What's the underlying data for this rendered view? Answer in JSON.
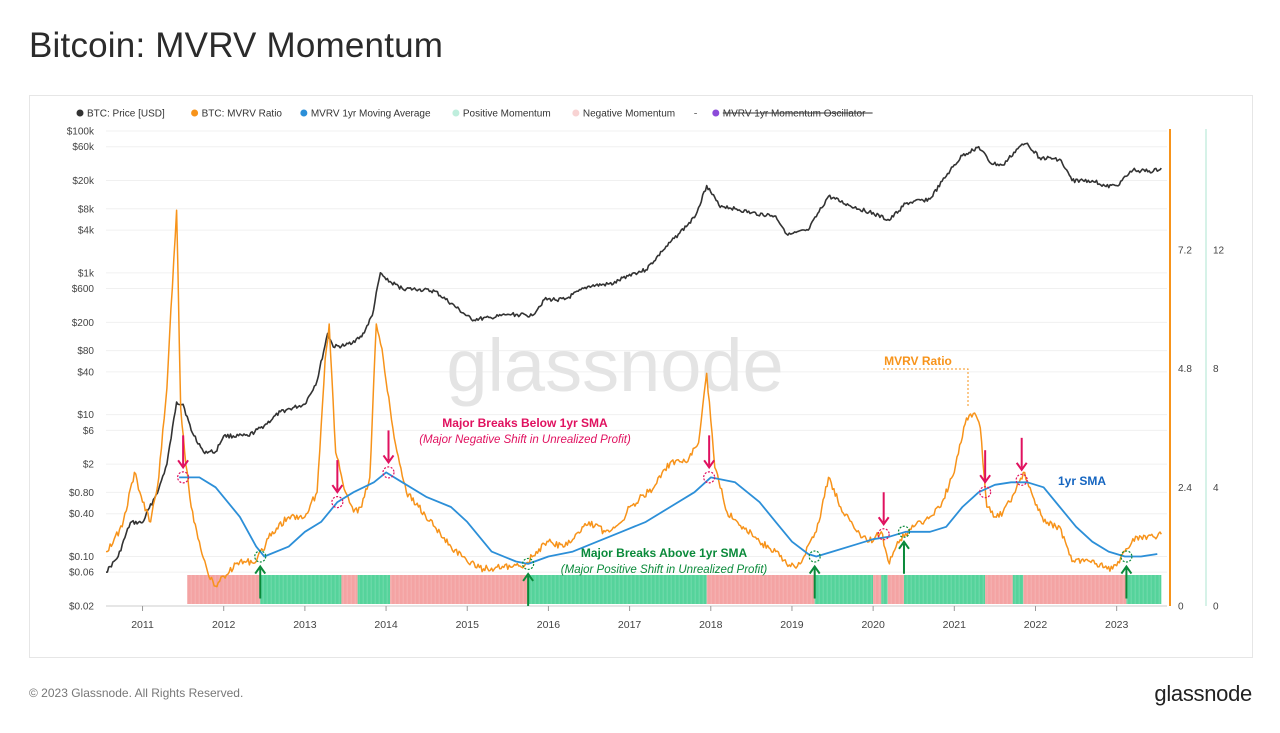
{
  "page": {
    "title": "Bitcoin: MVRV Momentum",
    "copyright": "© 2023 Glassnode. All Rights Reserved.",
    "brand": "glassnode",
    "watermark": "glassnode"
  },
  "colors": {
    "price": "#333333",
    "mvrv": "#f7931a",
    "sma": "#2c8fd8",
    "positive": "#55d39b",
    "negative": "#f4a3a3",
    "oscillator": "#8c4bd9",
    "neg_text": "#e0115f",
    "pos_text": "#0a8a3a",
    "sma_text": "#1565c0"
  },
  "annotations": {
    "neg_title": "Major Breaks Below 1yr SMA",
    "neg_sub": "(Major Negative Shift in Unrealized Profit)",
    "pos_title": "Major Breaks Above 1yr SMA",
    "pos_sub": "(Major Positive Shift in Unrealized Profit)",
    "mvrv_label": "MVRV Ratio",
    "sma_label": "1yr SMA"
  },
  "chart_data": {
    "type": "line",
    "title": "Bitcoin: MVRV Momentum",
    "legend": [
      {
        "name": "BTC: Price [USD]",
        "color": "#333333",
        "strike": false
      },
      {
        "name": "BTC: MVRV Ratio",
        "color": "#f7931a",
        "strike": false
      },
      {
        "name": "MVRV 1yr Moving Average",
        "color": "#2c8fd8",
        "strike": false
      },
      {
        "name": "Positive Momentum",
        "color": "#bfeedd",
        "strike": false
      },
      {
        "name": "Negative Momentum",
        "color": "#f8d3d3",
        "strike": false
      },
      {
        "name": "MVRV 1yr Momentum Oscillator",
        "color": "#8c4bd9",
        "strike": true
      }
    ],
    "x_ticks": [
      "2011",
      "2012",
      "2013",
      "2014",
      "2015",
      "2016",
      "2017",
      "2018",
      "2019",
      "2020",
      "2021",
      "2022",
      "2023"
    ],
    "y_left": {
      "scale": "log",
      "ticks": [
        "$100k",
        "$60k",
        "$20k",
        "$8k",
        "$4k",
        "$1k",
        "$600",
        "$200",
        "$80",
        "$40",
        "$10",
        "$6",
        "$2",
        "$0.80",
        "$0.40",
        "$0.10",
        "$0.06",
        "$0.02"
      ]
    },
    "y_mvrv": {
      "ticks": [
        "7.2",
        "4.8",
        "2.4",
        "0"
      ],
      "range": [
        0,
        9.6
      ]
    },
    "y_osc": {
      "ticks": [
        "12",
        "8",
        "4",
        "0"
      ],
      "range": [
        0,
        16
      ]
    },
    "price": [
      [
        2010.55,
        0.06
      ],
      [
        2010.7,
        0.1
      ],
      [
        2010.85,
        0.3
      ],
      [
        2011.0,
        0.3
      ],
      [
        2011.2,
        0.9
      ],
      [
        2011.3,
        2
      ],
      [
        2011.42,
        15
      ],
      [
        2011.5,
        14
      ],
      [
        2011.6,
        6
      ],
      [
        2011.75,
        3
      ],
      [
        2011.9,
        3
      ],
      [
        2012.0,
        5
      ],
      [
        2012.3,
        5
      ],
      [
        2012.5,
        7
      ],
      [
        2012.7,
        11
      ],
      [
        2013.0,
        14
      ],
      [
        2013.15,
        30
      ],
      [
        2013.28,
        140
      ],
      [
        2013.35,
        90
      ],
      [
        2013.5,
        95
      ],
      [
        2013.7,
        125
      ],
      [
        2013.83,
        250
      ],
      [
        2013.93,
        1000
      ],
      [
        2014.0,
        800
      ],
      [
        2014.2,
        600
      ],
      [
        2014.4,
        580
      ],
      [
        2014.6,
        550
      ],
      [
        2014.8,
        370
      ],
      [
        2015.05,
        220
      ],
      [
        2015.3,
        230
      ],
      [
        2015.5,
        260
      ],
      [
        2015.8,
        250
      ],
      [
        2015.95,
        420
      ],
      [
        2016.2,
        420
      ],
      [
        2016.5,
        650
      ],
      [
        2016.8,
        700
      ],
      [
        2017.0,
        950
      ],
      [
        2017.2,
        1100
      ],
      [
        2017.4,
        2000
      ],
      [
        2017.6,
        3500
      ],
      [
        2017.8,
        6000
      ],
      [
        2017.95,
        17000
      ],
      [
        2018.1,
        9000
      ],
      [
        2018.3,
        8000
      ],
      [
        2018.5,
        7000
      ],
      [
        2018.8,
        6300
      ],
      [
        2018.95,
        3400
      ],
      [
        2019.2,
        4000
      ],
      [
        2019.45,
        12000
      ],
      [
        2019.7,
        9000
      ],
      [
        2019.95,
        7200
      ],
      [
        2020.2,
        5500
      ],
      [
        2020.4,
        9500
      ],
      [
        2020.7,
        11000
      ],
      [
        2020.95,
        28000
      ],
      [
        2021.1,
        45000
      ],
      [
        2021.3,
        60000
      ],
      [
        2021.45,
        35000
      ],
      [
        2021.6,
        33000
      ],
      [
        2021.8,
        60000
      ],
      [
        2021.9,
        67000
      ],
      [
        2022.05,
        42000
      ],
      [
        2022.3,
        40000
      ],
      [
        2022.45,
        20000
      ],
      [
        2022.7,
        20000
      ],
      [
        2022.87,
        16500
      ],
      [
        2023.0,
        17000
      ],
      [
        2023.2,
        28000
      ],
      [
        2023.45,
        27000
      ],
      [
        2023.55,
        30000
      ]
    ],
    "mvrv": [
      [
        2010.55,
        1.1
      ],
      [
        2010.75,
        1.6
      ],
      [
        2010.9,
        2.7
      ],
      [
        2011.0,
        2.1
      ],
      [
        2011.1,
        1.7
      ],
      [
        2011.2,
        2.6
      ],
      [
        2011.3,
        4.4
      ],
      [
        2011.35,
        6.0
      ],
      [
        2011.42,
        8.0
      ],
      [
        2011.47,
        4.0
      ],
      [
        2011.52,
        3.1
      ],
      [
        2011.6,
        2.0
      ],
      [
        2011.7,
        1.3
      ],
      [
        2011.8,
        0.7
      ],
      [
        2011.9,
        0.4
      ],
      [
        2012.0,
        0.6
      ],
      [
        2012.2,
        0.9
      ],
      [
        2012.4,
        0.9
      ],
      [
        2012.6,
        1.5
      ],
      [
        2012.8,
        1.8
      ],
      [
        2013.0,
        1.8
      ],
      [
        2013.15,
        2.3
      ],
      [
        2013.25,
        5.0
      ],
      [
        2013.3,
        5.7
      ],
      [
        2013.38,
        3.1
      ],
      [
        2013.5,
        2.3
      ],
      [
        2013.6,
        1.9
      ],
      [
        2013.7,
        2.0
      ],
      [
        2013.8,
        2.6
      ],
      [
        2013.88,
        5.7
      ],
      [
        2013.95,
        5.2
      ],
      [
        2014.1,
        3.4
      ],
      [
        2014.25,
        2.3
      ],
      [
        2014.4,
        2.0
      ],
      [
        2014.6,
        1.6
      ],
      [
        2014.8,
        1.2
      ],
      [
        2015.0,
        0.9
      ],
      [
        2015.2,
        0.75
      ],
      [
        2015.45,
        0.78
      ],
      [
        2015.7,
        0.8
      ],
      [
        2015.85,
        1.1
      ],
      [
        2016.0,
        1.3
      ],
      [
        2016.2,
        1.2
      ],
      [
        2016.5,
        1.7
      ],
      [
        2016.7,
        1.5
      ],
      [
        2016.9,
        1.7
      ],
      [
        2017.0,
        2.0
      ],
      [
        2017.3,
        2.4
      ],
      [
        2017.5,
        2.9
      ],
      [
        2017.7,
        2.9
      ],
      [
        2017.85,
        3.3
      ],
      [
        2017.95,
        4.7
      ],
      [
        2018.05,
        2.8
      ],
      [
        2018.2,
        1.9
      ],
      [
        2018.4,
        1.6
      ],
      [
        2018.6,
        1.3
      ],
      [
        2018.8,
        1.1
      ],
      [
        2018.95,
        0.8
      ],
      [
        2019.1,
        0.85
      ],
      [
        2019.3,
        1.5
      ],
      [
        2019.45,
        2.6
      ],
      [
        2019.6,
        2.0
      ],
      [
        2019.8,
        1.5
      ],
      [
        2019.95,
        1.3
      ],
      [
        2020.1,
        1.5
      ],
      [
        2020.2,
        0.85
      ],
      [
        2020.3,
        1.3
      ],
      [
        2020.5,
        1.6
      ],
      [
        2020.7,
        1.8
      ],
      [
        2020.85,
        2.1
      ],
      [
        2021.0,
        2.7
      ],
      [
        2021.15,
        3.8
      ],
      [
        2021.25,
        3.9
      ],
      [
        2021.32,
        3.6
      ],
      [
        2021.4,
        2.0
      ],
      [
        2021.5,
        1.8
      ],
      [
        2021.6,
        1.9
      ],
      [
        2021.75,
        2.3
      ],
      [
        2021.85,
        2.7
      ],
      [
        2021.95,
        2.3
      ],
      [
        2022.1,
        1.7
      ],
      [
        2022.3,
        1.6
      ],
      [
        2022.45,
        0.9
      ],
      [
        2022.6,
        0.9
      ],
      [
        2022.8,
        0.85
      ],
      [
        2022.95,
        0.75
      ],
      [
        2023.1,
        1.1
      ],
      [
        2023.25,
        1.4
      ],
      [
        2023.45,
        1.4
      ],
      [
        2023.55,
        1.45
      ]
    ],
    "sma": [
      [
        2011.45,
        2.6
      ],
      [
        2011.7,
        2.6
      ],
      [
        2011.9,
        2.4
      ],
      [
        2012.2,
        1.8
      ],
      [
        2012.4,
        1.2
      ],
      [
        2012.5,
        1.0
      ],
      [
        2012.8,
        1.2
      ],
      [
        2013.0,
        1.5
      ],
      [
        2013.2,
        1.7
      ],
      [
        2013.4,
        2.1
      ],
      [
        2013.6,
        2.3
      ],
      [
        2013.85,
        2.5
      ],
      [
        2014.0,
        2.7
      ],
      [
        2014.2,
        2.5
      ],
      [
        2014.5,
        2.2
      ],
      [
        2014.8,
        2.0
      ],
      [
        2015.0,
        1.7
      ],
      [
        2015.3,
        1.1
      ],
      [
        2015.6,
        0.9
      ],
      [
        2015.75,
        0.85
      ],
      [
        2016.0,
        1.0
      ],
      [
        2016.3,
        1.1
      ],
      [
        2016.6,
        1.3
      ],
      [
        2016.9,
        1.5
      ],
      [
        2017.2,
        1.7
      ],
      [
        2017.5,
        2.0
      ],
      [
        2017.8,
        2.3
      ],
      [
        2018.0,
        2.6
      ],
      [
        2018.3,
        2.5
      ],
      [
        2018.6,
        2.1
      ],
      [
        2018.8,
        1.7
      ],
      [
        2019.0,
        1.3
      ],
      [
        2019.2,
        1.05
      ],
      [
        2019.3,
        1.0
      ],
      [
        2019.5,
        1.1
      ],
      [
        2019.8,
        1.25
      ],
      [
        2020.0,
        1.35
      ],
      [
        2020.2,
        1.4
      ],
      [
        2020.4,
        1.5
      ],
      [
        2020.7,
        1.5
      ],
      [
        2020.9,
        1.6
      ],
      [
        2021.1,
        2.0
      ],
      [
        2021.3,
        2.3
      ],
      [
        2021.5,
        2.45
      ],
      [
        2021.7,
        2.5
      ],
      [
        2021.9,
        2.5
      ],
      [
        2022.1,
        2.4
      ],
      [
        2022.3,
        2.0
      ],
      [
        2022.5,
        1.6
      ],
      [
        2022.7,
        1.3
      ],
      [
        2022.9,
        1.1
      ],
      [
        2023.1,
        1.0
      ],
      [
        2023.3,
        1.0
      ],
      [
        2023.5,
        1.05
      ]
    ],
    "momentum": [
      {
        "from": 2011.55,
        "to": 2012.45,
        "state": "negative"
      },
      {
        "from": 2012.45,
        "to": 2013.45,
        "state": "positive"
      },
      {
        "from": 2013.45,
        "to": 2013.65,
        "state": "negative"
      },
      {
        "from": 2013.65,
        "to": 2014.05,
        "state": "positive"
      },
      {
        "from": 2014.05,
        "to": 2015.75,
        "state": "negative"
      },
      {
        "from": 2015.75,
        "to": 2017.95,
        "state": "positive"
      },
      {
        "from": 2017.95,
        "to": 2019.28,
        "state": "negative"
      },
      {
        "from": 2019.28,
        "to": 2020.0,
        "state": "positive"
      },
      {
        "from": 2020.0,
        "to": 2020.1,
        "state": "negative"
      },
      {
        "from": 2020.1,
        "to": 2020.18,
        "state": "positive"
      },
      {
        "from": 2020.18,
        "to": 2020.38,
        "state": "negative"
      },
      {
        "from": 2020.38,
        "to": 2021.38,
        "state": "positive"
      },
      {
        "from": 2021.38,
        "to": 2021.72,
        "state": "negative"
      },
      {
        "from": 2021.72,
        "to": 2021.85,
        "state": "positive"
      },
      {
        "from": 2021.85,
        "to": 2023.12,
        "state": "negative"
      },
      {
        "from": 2023.12,
        "to": 2023.55,
        "state": "positive"
      }
    ],
    "breaks_below": [
      [
        2011.5,
        2.6
      ],
      [
        2013.4,
        2.1
      ],
      [
        2014.03,
        2.7
      ],
      [
        2017.98,
        2.6
      ],
      [
        2020.13,
        1.45
      ],
      [
        2021.38,
        2.3
      ],
      [
        2021.83,
        2.55
      ]
    ],
    "breaks_above": [
      [
        2012.45,
        1.0
      ],
      [
        2015.75,
        0.85
      ],
      [
        2019.28,
        1.0
      ],
      [
        2020.38,
        1.5
      ],
      [
        2023.12,
        1.0
      ]
    ],
    "grid": true,
    "legend_position": "top-left"
  }
}
